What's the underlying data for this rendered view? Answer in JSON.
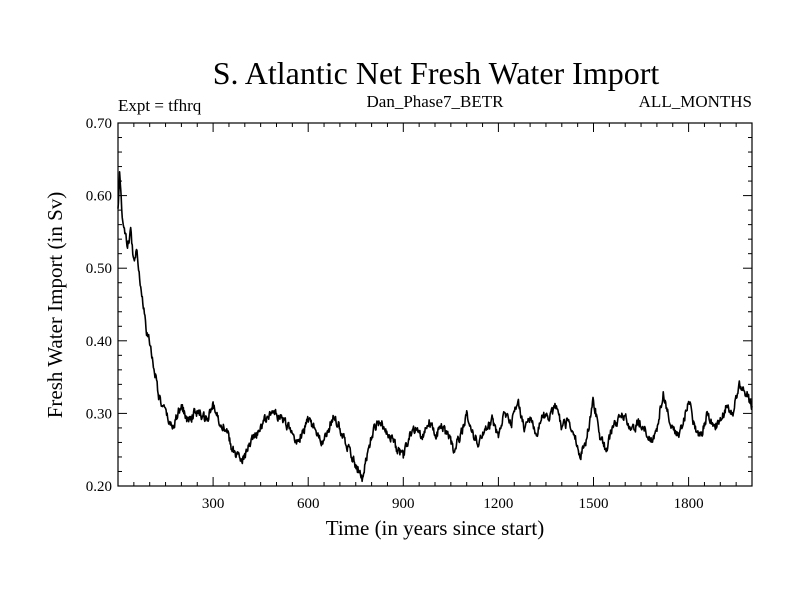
{
  "chart_data": {
    "type": "line",
    "title": "S. Atlantic Net Fresh Water Import",
    "subtitles": {
      "left": "Expt = tfhrq",
      "center": "Dan_Phase7_BETR",
      "right": "ALL_MONTHS"
    },
    "xlabel": "Time (in years since start)",
    "ylabel": "Fresh Water Import (in Sv)",
    "xlim": [
      0,
      2000
    ],
    "ylim": [
      0.2,
      0.7
    ],
    "xticks": [
      300,
      600,
      900,
      1200,
      1500,
      1800
    ],
    "xtick_labels": [
      "300",
      "600",
      "900",
      "1200",
      "1500",
      "1800"
    ],
    "yticks": [
      0.2,
      0.3,
      0.4,
      0.5,
      0.6,
      0.7
    ],
    "ytick_labels": [
      "0.20",
      "0.30",
      "0.40",
      "0.50",
      "0.60",
      "0.70"
    ],
    "grid": false,
    "line_color": "#000000",
    "series": [
      {
        "name": "Net Fresh Water Import",
        "x": [
          0,
          5,
          10,
          20,
          30,
          40,
          50,
          60,
          70,
          80,
          90,
          100,
          110,
          120,
          130,
          140,
          150,
          160,
          170,
          180,
          200,
          220,
          240,
          260,
          280,
          300,
          320,
          340,
          360,
          380,
          400,
          420,
          440,
          460,
          480,
          500,
          520,
          540,
          560,
          580,
          600,
          620,
          640,
          660,
          680,
          700,
          720,
          740,
          760,
          770,
          780,
          800,
          820,
          840,
          860,
          880,
          900,
          920,
          940,
          960,
          980,
          1000,
          1020,
          1040,
          1060,
          1080,
          1100,
          1120,
          1140,
          1160,
          1180,
          1200,
          1220,
          1240,
          1260,
          1280,
          1300,
          1320,
          1340,
          1360,
          1380,
          1400,
          1420,
          1440,
          1460,
          1480,
          1500,
          1520,
          1540,
          1560,
          1580,
          1600,
          1620,
          1640,
          1660,
          1680,
          1700,
          1720,
          1740,
          1760,
          1780,
          1800,
          1820,
          1840,
          1860,
          1880,
          1900,
          1920,
          1940,
          1960,
          1980,
          2000
        ],
        "values": [
          0.58,
          0.63,
          0.59,
          0.55,
          0.53,
          0.55,
          0.51,
          0.53,
          0.48,
          0.45,
          0.41,
          0.4,
          0.37,
          0.35,
          0.32,
          0.31,
          0.3,
          0.29,
          0.28,
          0.29,
          0.31,
          0.29,
          0.3,
          0.3,
          0.29,
          0.31,
          0.29,
          0.28,
          0.25,
          0.24,
          0.24,
          0.26,
          0.27,
          0.29,
          0.3,
          0.3,
          0.29,
          0.28,
          0.26,
          0.27,
          0.29,
          0.28,
          0.26,
          0.27,
          0.3,
          0.28,
          0.26,
          0.24,
          0.22,
          0.21,
          0.23,
          0.27,
          0.29,
          0.28,
          0.27,
          0.25,
          0.24,
          0.27,
          0.28,
          0.27,
          0.29,
          0.27,
          0.28,
          0.27,
          0.25,
          0.27,
          0.3,
          0.27,
          0.26,
          0.28,
          0.29,
          0.27,
          0.3,
          0.28,
          0.32,
          0.28,
          0.29,
          0.27,
          0.3,
          0.29,
          0.31,
          0.28,
          0.29,
          0.27,
          0.24,
          0.27,
          0.32,
          0.27,
          0.25,
          0.28,
          0.29,
          0.3,
          0.27,
          0.29,
          0.28,
          0.26,
          0.28,
          0.33,
          0.29,
          0.27,
          0.28,
          0.32,
          0.28,
          0.27,
          0.3,
          0.28,
          0.29,
          0.31,
          0.3,
          0.34,
          0.33,
          0.31
        ]
      }
    ]
  }
}
